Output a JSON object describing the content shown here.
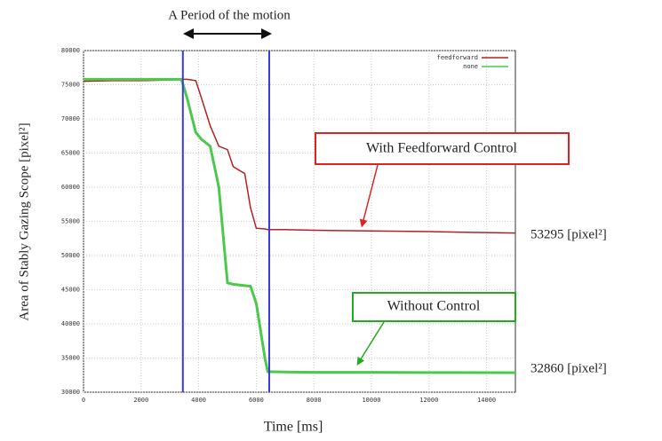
{
  "chart_data": {
    "type": "line",
    "title": "A Period of the motion",
    "x_label": "Time [ms]",
    "y_label": "Area of Stably Gazing Scope [pixel²]",
    "x": [
      0,
      1000,
      2000,
      3000,
      3400,
      3600,
      3900,
      4100,
      4400,
      4700,
      5000,
      5200,
      5600,
      5800,
      6000,
      6300,
      6400,
      7000,
      8000,
      10000,
      12000,
      15000
    ],
    "series": [
      {
        "name": "feedforward",
        "color": "#b22222",
        "values": [
          75500,
          75600,
          75600,
          75700,
          75800,
          75800,
          75600,
          73000,
          69000,
          66000,
          65500,
          63000,
          62000,
          57000,
          54000,
          53900,
          53800,
          53800,
          53700,
          53600,
          53500,
          53300
        ]
      },
      {
        "name": "none",
        "color": "#4cc84c",
        "values": [
          75800,
          75800,
          75800,
          75800,
          75800,
          73000,
          68000,
          67000,
          66000,
          60000,
          46000,
          45800,
          45600,
          45500,
          43000,
          35000,
          33000,
          32950,
          32900,
          32900,
          32880,
          32860
        ]
      }
    ],
    "markers": [
      3450,
      6450
    ],
    "marker_color": "#3a3adc",
    "xlim": [
      0,
      15000
    ],
    "xticks": [
      0,
      2000,
      4000,
      6000,
      8000,
      10000,
      12000,
      14000
    ],
    "ylim": [
      30000,
      80000
    ],
    "yticks": [
      30000,
      35000,
      40000,
      45000,
      50000,
      55000,
      60000,
      65000,
      70000,
      75000,
      80000
    ],
    "grid": true,
    "legend": "upper right",
    "annotations": [
      "With Feedforward Control",
      "Without Control",
      "53295  [pixel²]",
      "32860 [pixel²]"
    ]
  }
}
